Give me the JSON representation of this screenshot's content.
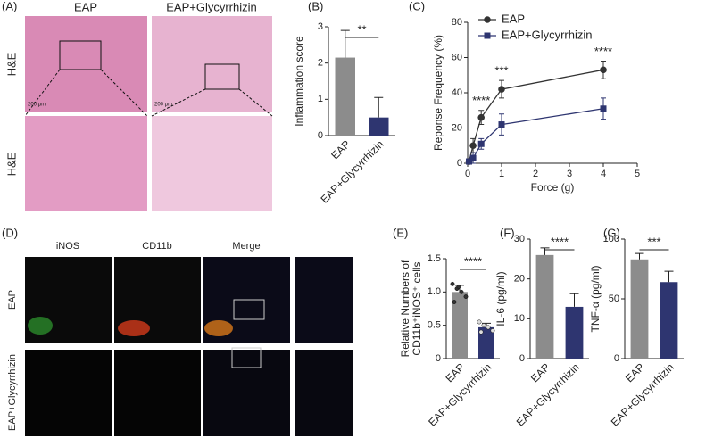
{
  "figure": {
    "panel_labels": [
      "(A)",
      "(B)",
      "(C)",
      "(D)",
      "(E)",
      "(F)",
      "(G)"
    ],
    "a_columns": [
      "EAP",
      "EAP+Glycyrrhizin"
    ],
    "a_rows": [
      "H&E",
      "H&E"
    ],
    "a_scale_labels": [
      "200 μm",
      "200 μm"
    ],
    "d_columns": [
      "iNOS",
      "CD11b",
      "Merge"
    ],
    "d_rows": [
      "EAP",
      "EAP+Glycyrrhizin"
    ]
  },
  "chart_data": [
    {
      "type": "bar",
      "categories": [
        "EAP",
        "EAP+Glycyrrhizin"
      ],
      "values": [
        2.15,
        0.5
      ],
      "errors": [
        0.75,
        0.55
      ],
      "colors": [
        "#8c8c8c",
        "#2e3570"
      ],
      "ylabel": [
        "Inflammation score"
      ],
      "ylim": [
        0,
        3
      ],
      "yticks": [
        0,
        1,
        2,
        3
      ],
      "significance": "**"
    },
    {
      "type": "line",
      "x": [
        0.04,
        0.16,
        0.4,
        1,
        4
      ],
      "xlabel": "Force (g)",
      "ylabel": "Reponse Frequency (%)",
      "xlim": [
        0,
        5
      ],
      "xticks": [
        0,
        1,
        2,
        3,
        4,
        5
      ],
      "ylim": [
        0,
        80
      ],
      "yticks": [
        0,
        20,
        40,
        60,
        80
      ],
      "legend": "top-left",
      "series": [
        {
          "name": "EAP",
          "color": "#333333",
          "marker": "circle",
          "values": [
            1,
            10,
            26,
            42,
            53
          ],
          "errors": [
            1,
            4,
            4,
            5,
            5
          ]
        },
        {
          "name": "EAP+Glycyrrhizin",
          "color": "#2e3570",
          "marker": "square",
          "values": [
            1,
            3,
            11,
            22,
            31
          ],
          "errors": [
            1,
            3,
            3,
            6,
            6
          ]
        }
      ],
      "annotations": [
        {
          "x": 0.4,
          "text": "****"
        },
        {
          "x": 1,
          "text": "***"
        },
        {
          "x": 4,
          "text": "****"
        }
      ]
    },
    {
      "type": "bar",
      "categories": [
        "EAP",
        "EAP+Glycyrrhizin"
      ],
      "values": [
        1.0,
        0.47
      ],
      "errors": [
        0.1,
        0.06
      ],
      "points": [
        [
          1.12,
          1.05,
          1.0,
          0.93,
          0.85,
          1.08
        ],
        [
          0.55,
          0.5,
          0.47,
          0.42,
          0.4
        ]
      ],
      "colors": [
        "#8c8c8c",
        "#2e3570"
      ],
      "ylabel": [
        "Relative Numbers of",
        "CD11b⁺iNOS⁺ cells"
      ],
      "ylim": [
        0,
        1.5
      ],
      "yticks": [
        0,
        0.5,
        {
          "value": 1,
          "label": "1.0"
        },
        1.5
      ],
      "significance": "****"
    },
    {
      "type": "bar",
      "categories": [
        "EAP",
        "EAP+Glycyrrhizin"
      ],
      "values": [
        26,
        13
      ],
      "errors": [
        1.8,
        3.3
      ],
      "colors": [
        "#8c8c8c",
        "#2e3570"
      ],
      "ylabel": [
        "IL-6 (pg/ml)"
      ],
      "ylim": [
        0,
        30
      ],
      "yticks": [
        0,
        10,
        20,
        30
      ],
      "significance": "****"
    },
    {
      "type": "bar",
      "categories": [
        "EAP",
        "EAP+Glycyrrhizin"
      ],
      "values": [
        83,
        64
      ],
      "errors": [
        5,
        9
      ],
      "colors": [
        "#8c8c8c",
        "#2e3570"
      ],
      "ylabel": [
        "TNF-α (pg/ml)"
      ],
      "ylim": [
        0,
        100
      ],
      "yticks": [
        0,
        50,
        100
      ],
      "significance": "***"
    }
  ]
}
